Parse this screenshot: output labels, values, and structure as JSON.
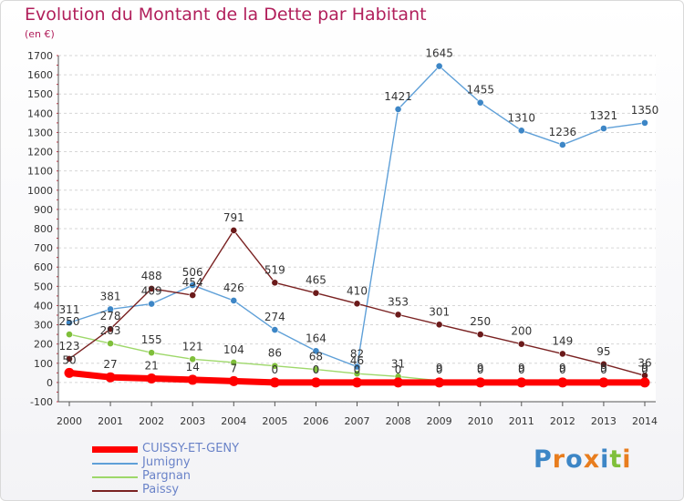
{
  "header": {
    "title": "Evolution du Montant de la Dette par Habitant",
    "subtitle": "(en €)"
  },
  "logo": {
    "text": "Proxiti",
    "colors": [
      "#3d86c6",
      "#e87d1e",
      "#3d86c6",
      "#e87d1e",
      "#3d86c6",
      "#7fbf3a",
      "#e87d1e"
    ]
  },
  "chart_data": {
    "type": "line",
    "title": "Evolution du Montant de la Dette par Habitant",
    "subtitle": "(en €)",
    "x": [
      2000,
      2001,
      2002,
      2003,
      2004,
      2005,
      2006,
      2007,
      2008,
      2009,
      2010,
      2011,
      2012,
      2013,
      2014
    ],
    "ylim": [
      -100,
      1700
    ],
    "yticks": [
      -100,
      0,
      100,
      200,
      300,
      400,
      500,
      600,
      700,
      800,
      900,
      1000,
      1100,
      1200,
      1300,
      1400,
      1500,
      1600,
      1700
    ],
    "grid": "horizontal",
    "legend_position": "bottom-left",
    "series": [
      {
        "name": "CUISSY-ET-GENY",
        "color": "#ff0000",
        "point_color": "#ff0000",
        "values": [
          50,
          27,
          21,
          14,
          7,
          0,
          0,
          0,
          0,
          0,
          0,
          0,
          0,
          0,
          0
        ],
        "labels": [
          "50",
          "27",
          "21",
          "14",
          "7",
          "0",
          "0",
          "0",
          "0",
          "0",
          "0",
          "0",
          "0",
          "0",
          "0"
        ]
      },
      {
        "name": "Jumigny",
        "color": "#5fa0d8",
        "point_color": "#3d86c6",
        "values": [
          311,
          381,
          409,
          506,
          426,
          274,
          164,
          82,
          1421,
          1645,
          1455,
          1310,
          1236,
          1321,
          1350
        ],
        "labels": [
          "311",
          "381",
          "409",
          "506",
          "426",
          "274",
          "164",
          "82",
          "1421",
          "1645",
          "1455",
          "1310",
          "1236",
          "1321",
          "1350"
        ]
      },
      {
        "name": "Pargnan",
        "color": "#9ed86a",
        "point_color": "#7fbf3a",
        "values": [
          250,
          203,
          155,
          121,
          104,
          86,
          68,
          46,
          31,
          9,
          9,
          9,
          9,
          9,
          9
        ],
        "labels": [
          "250",
          "203",
          "155",
          "121",
          "104",
          "86",
          "68",
          "46",
          "31",
          "9",
          "9",
          "9",
          "9",
          "9",
          "9"
        ]
      },
      {
        "name": "Paissy",
        "color": "#7a2222",
        "point_color": "#6b1a1a",
        "values": [
          123,
          278,
          488,
          454,
          791,
          519,
          465,
          410,
          353,
          301,
          250,
          200,
          149,
          95,
          36
        ],
        "labels": [
          "123",
          "278",
          "488",
          "454",
          "791",
          "519",
          "465",
          "410",
          "353",
          "301",
          "250",
          "200",
          "149",
          "95",
          "36"
        ]
      }
    ]
  }
}
